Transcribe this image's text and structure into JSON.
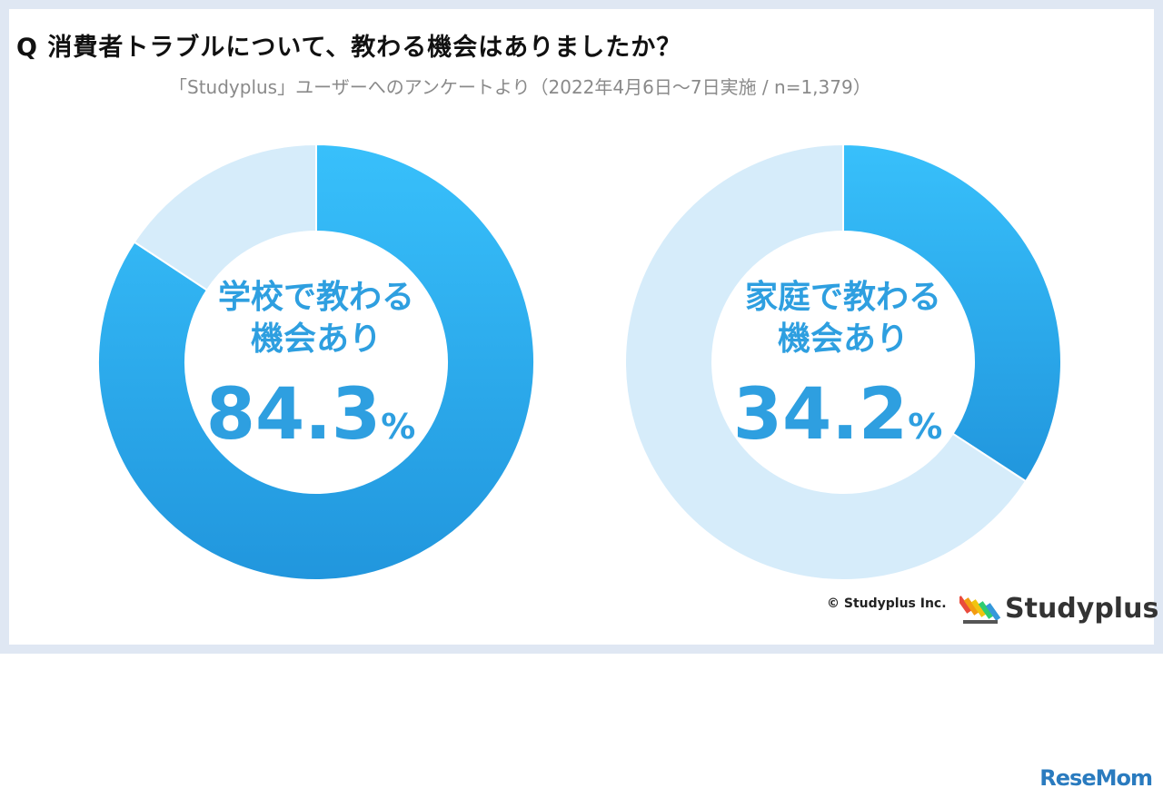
{
  "question": "Q 消費者トラブルについて、教わる機会はありましたか？",
  "subtitle": "「Studyplus」ユーザーへのアンケートより（2022年4月6日〜7日実施 / n=1,379）",
  "copyright": "© Studyplus Inc.",
  "brand": "Studyplus",
  "watermark": "ReseMom",
  "colors": {
    "main": "#2aa8ef",
    "rest": "#d6ecfa",
    "label": "#2e9fe0"
  },
  "chart_data": [
    {
      "type": "pie",
      "label_line1": "学校で教わる",
      "label_line2": "機会あり",
      "value": 84.3,
      "value_label": "84.3",
      "unit": "%",
      "slices": [
        84.3,
        15.7
      ]
    },
    {
      "type": "pie",
      "label_line1": "家庭で教わる",
      "label_line2": "機会あり",
      "value": 34.2,
      "value_label": "34.2",
      "unit": "%",
      "slices": [
        34.2,
        65.8
      ]
    }
  ]
}
